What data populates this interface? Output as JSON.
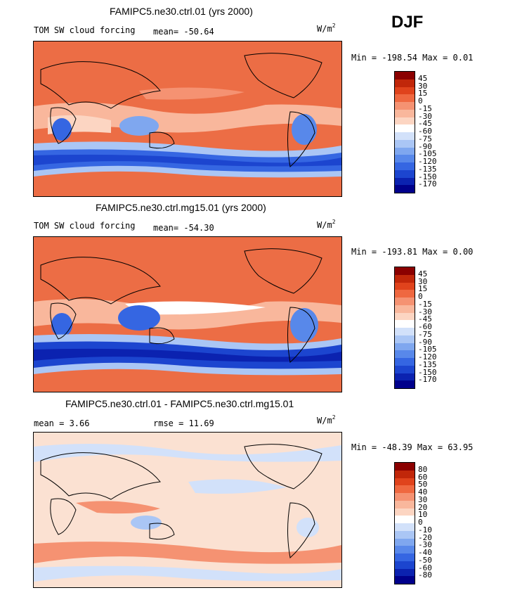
{
  "season": "DJF",
  "panels": [
    {
      "title": "FAMIPC5.ne30.ctrl.01 (yrs 2000)",
      "variable": "TOM SW cloud forcing",
      "mean_label": "mean= -50.64",
      "units": "W/m",
      "units_exp": "2",
      "minmax": "Min = -198.54 Max =   0.01",
      "background": "#ec6d45"
    },
    {
      "title": "FAMIPC5.ne30.ctrl.mg15.01 (yrs 2000)",
      "variable": "TOM SW cloud forcing",
      "mean_label": "mean= -54.30",
      "units": "W/m",
      "units_exp": "2",
      "minmax": "Min = -193.81 Max =   0.00",
      "background": "#ec6d45"
    },
    {
      "title": "FAMIPC5.ne30.ctrl.01 - FAMIPC5.ne30.ctrl.mg15.01",
      "mean_label": "mean =   3.66",
      "rmse_label": "rmse =  11.69",
      "units": "W/m",
      "units_exp": "2",
      "minmax": "Min = -48.39 Max =  63.95",
      "background": "#fbe1d2"
    }
  ],
  "chart_data": [
    {
      "type": "heatmap",
      "title": "FAMIPC5.ne30.ctrl.01 (yrs 2000)",
      "variable": "TOM SW cloud forcing",
      "units": "W/m2",
      "mean": -50.64,
      "min": -198.54,
      "max": 0.01,
      "colorbar_levels": [
        "45",
        "30",
        "15",
        "0",
        "-15",
        "-30",
        "-45",
        "-60",
        "-75",
        "-90",
        "-105",
        "-120",
        "-135",
        "-150",
        "-170"
      ],
      "colorbar_colors": [
        "#8b0000",
        "#c1270a",
        "#e0431c",
        "#ef6840",
        "#f59272",
        "#f9b79c",
        "#fcd5c2",
        "#ffffff",
        "#d2e1fa",
        "#aac6f5",
        "#7fa7ef",
        "#5888ea",
        "#3566e2",
        "#1c45cf",
        "#0b22b0",
        "#00008b"
      ]
    },
    {
      "type": "heatmap",
      "title": "FAMIPC5.ne30.ctrl.mg15.01 (yrs 2000)",
      "variable": "TOM SW cloud forcing",
      "units": "W/m2",
      "mean": -54.3,
      "min": -193.81,
      "max": 0.0,
      "colorbar_levels": [
        "45",
        "30",
        "15",
        "0",
        "-15",
        "-30",
        "-45",
        "-60",
        "-75",
        "-90",
        "-105",
        "-120",
        "-135",
        "-150",
        "-170"
      ],
      "colorbar_colors": [
        "#8b0000",
        "#c1270a",
        "#e0431c",
        "#ef6840",
        "#f59272",
        "#f9b79c",
        "#fcd5c2",
        "#ffffff",
        "#d2e1fa",
        "#aac6f5",
        "#7fa7ef",
        "#5888ea",
        "#3566e2",
        "#1c45cf",
        "#0b22b0",
        "#00008b"
      ]
    },
    {
      "type": "heatmap",
      "title": "FAMIPC5.ne30.ctrl.01 - FAMIPC5.ne30.ctrl.mg15.01",
      "units": "W/m2",
      "mean": 3.66,
      "rmse": 11.69,
      "min": -48.39,
      "max": 63.95,
      "colorbar_levels": [
        "80",
        "60",
        "50",
        "40",
        "30",
        "20",
        "10",
        "0",
        "-10",
        "-20",
        "-30",
        "-40",
        "-50",
        "-60",
        "-80"
      ],
      "colorbar_colors": [
        "#8b0000",
        "#c1270a",
        "#e0431c",
        "#ef6840",
        "#f59272",
        "#f9b79c",
        "#fcd5c2",
        "#ffffff",
        "#d2e1fa",
        "#aac6f5",
        "#7fa7ef",
        "#5888ea",
        "#3566e2",
        "#1c45cf",
        "#0b22b0",
        "#00008b"
      ]
    }
  ]
}
